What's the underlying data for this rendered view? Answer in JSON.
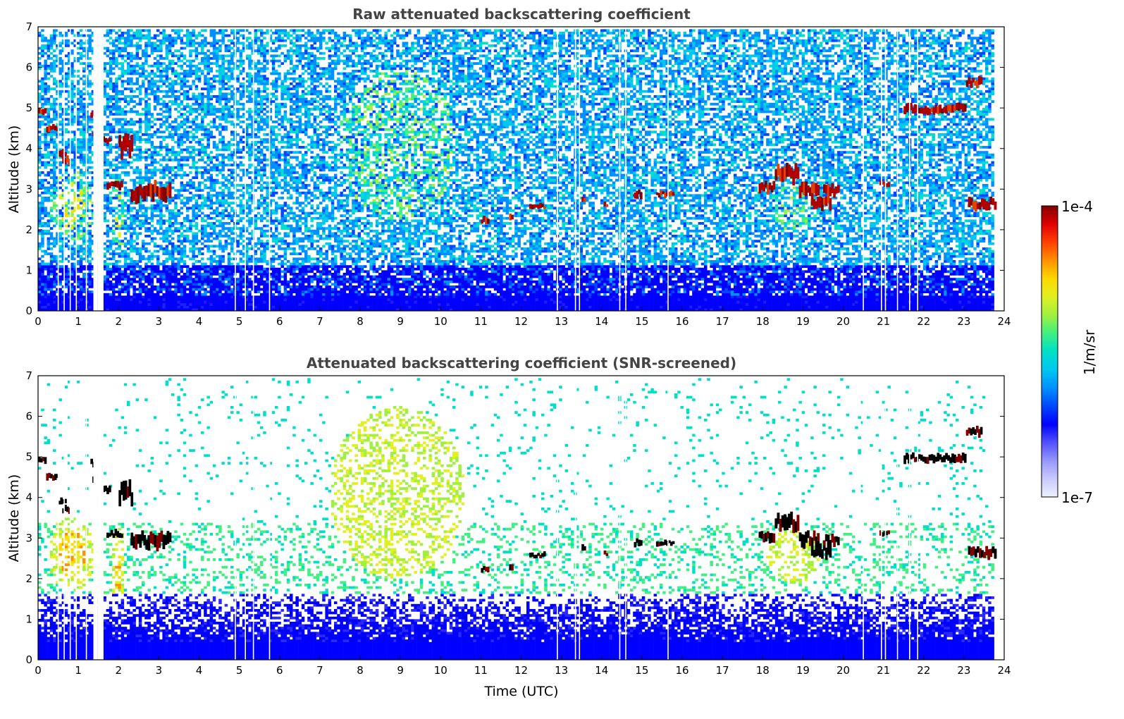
{
  "chart_data": [
    {
      "type": "heatmap",
      "title": "Raw attenuated backscattering coefficient",
      "xlabel": "",
      "ylabel": "Altitude (km)",
      "xlim": [
        0,
        24
      ],
      "ylim": [
        0,
        7
      ],
      "xticks": [
        "0",
        "1",
        "2",
        "3",
        "4",
        "5",
        "6",
        "7",
        "8",
        "9",
        "10",
        "11",
        "12",
        "13",
        "14",
        "15",
        "16",
        "17",
        "18",
        "19",
        "20",
        "21",
        "22",
        "23",
        "24"
      ],
      "yticks": [
        "0",
        "1",
        "2",
        "3",
        "4",
        "5",
        "6",
        "7"
      ],
      "data_end_hour": 23.8,
      "missing_data_hours": [
        0.5,
        0.65,
        0.8,
        0.95,
        1.2,
        1.4,
        1.45,
        1.5,
        1.55,
        1.6,
        4.9,
        5.15,
        5.35,
        5.75,
        12.9,
        13.35,
        13.45,
        14.45,
        14.6,
        15.65,
        20.5,
        20.95,
        21.05,
        21.35,
        21.65,
        21.85
      ],
      "clouds": [
        {
          "t": [
            0.0,
            0.2
          ],
          "alt": [
            4.8,
            5.0
          ],
          "level": "high"
        },
        {
          "t": [
            0.2,
            0.5
          ],
          "alt": [
            4.4,
            4.6
          ],
          "level": "high"
        },
        {
          "t": [
            0.5,
            0.7
          ],
          "alt": [
            3.8,
            4.0
          ],
          "level": "high"
        },
        {
          "t": [
            0.6,
            0.8
          ],
          "alt": [
            3.6,
            3.8
          ],
          "level": "high"
        },
        {
          "t": [
            1.3,
            1.4
          ],
          "alt": [
            4.75,
            4.95
          ],
          "level": "high"
        },
        {
          "t": [
            1.35,
            1.45
          ],
          "alt": [
            4.3,
            4.5
          ],
          "level": "high"
        },
        {
          "t": [
            1.6,
            1.8
          ],
          "alt": [
            4.1,
            4.3
          ],
          "level": "high"
        },
        {
          "t": [
            2.0,
            2.35
          ],
          "alt": [
            3.8,
            4.4
          ],
          "level": "high"
        },
        {
          "t": [
            1.7,
            2.1
          ],
          "alt": [
            3.0,
            3.2
          ],
          "level": "high"
        },
        {
          "t": [
            2.3,
            3.3
          ],
          "alt": [
            2.7,
            3.2
          ],
          "level": "high"
        },
        {
          "t": [
            11.0,
            11.2
          ],
          "alt": [
            2.15,
            2.35
          ],
          "level": "high"
        },
        {
          "t": [
            11.7,
            11.8
          ],
          "alt": [
            2.2,
            2.4
          ],
          "level": "high"
        },
        {
          "t": [
            12.2,
            12.6
          ],
          "alt": [
            2.5,
            2.65
          ],
          "level": "high"
        },
        {
          "t": [
            13.5,
            13.6
          ],
          "alt": [
            2.65,
            2.85
          ],
          "level": "high"
        },
        {
          "t": [
            14.05,
            14.15
          ],
          "alt": [
            2.55,
            2.7
          ],
          "level": "high"
        },
        {
          "t": [
            14.8,
            15.0
          ],
          "alt": [
            2.75,
            3.0
          ],
          "level": "high"
        },
        {
          "t": [
            15.35,
            15.8
          ],
          "alt": [
            2.8,
            2.95
          ],
          "level": "high"
        },
        {
          "t": [
            17.9,
            18.3
          ],
          "alt": [
            2.9,
            3.2
          ],
          "level": "high"
        },
        {
          "t": [
            18.3,
            18.9
          ],
          "alt": [
            3.15,
            3.6
          ],
          "level": "high"
        },
        {
          "t": [
            18.9,
            19.4
          ],
          "alt": [
            2.8,
            3.2
          ],
          "level": "high"
        },
        {
          "t": [
            19.2,
            19.7
          ],
          "alt": [
            2.5,
            2.9
          ],
          "level": "high"
        },
        {
          "t": [
            19.5,
            19.9
          ],
          "alt": [
            2.8,
            3.1
          ],
          "level": "high"
        },
        {
          "t": [
            20.9,
            21.15
          ],
          "alt": [
            3.05,
            3.2
          ],
          "level": "high"
        },
        {
          "t": [
            21.5,
            23.05
          ],
          "alt": [
            4.85,
            5.1
          ],
          "level": "high"
        },
        {
          "t": [
            23.05,
            23.45
          ],
          "alt": [
            5.5,
            5.75
          ],
          "level": "high"
        },
        {
          "t": [
            23.1,
            23.8
          ],
          "alt": [
            2.5,
            2.8
          ],
          "level": "high"
        },
        {
          "t": [
            0.3,
            1.3
          ],
          "alt": [
            1.8,
            3.4
          ],
          "level": "medium"
        },
        {
          "t": [
            1.8,
            2.1
          ],
          "alt": [
            1.5,
            3.2
          ],
          "level": "medium"
        },
        {
          "t": [
            7.0,
            10.8
          ],
          "alt": [
            1.7,
            6.5
          ],
          "level": "low"
        },
        {
          "t": [
            18.0,
            19.5
          ],
          "alt": [
            1.8,
            3.3
          ],
          "level": "low"
        }
      ]
    },
    {
      "type": "heatmap",
      "title": "Attenuated backscattering coefficient (SNR-screened)",
      "xlabel": "Time (UTC)",
      "ylabel": "Altitude (km)",
      "xlim": [
        0,
        24
      ],
      "ylim": [
        0,
        7
      ],
      "xticks": [
        "0",
        "1",
        "2",
        "3",
        "4",
        "5",
        "6",
        "7",
        "8",
        "9",
        "10",
        "11",
        "12",
        "13",
        "14",
        "15",
        "16",
        "17",
        "18",
        "19",
        "20",
        "21",
        "22",
        "23",
        "24"
      ],
      "yticks": [
        "0",
        "1",
        "2",
        "3",
        "4",
        "5",
        "6",
        "7"
      ],
      "saturated_color": "#000000"
    }
  ],
  "colorbar": {
    "label": "1/m/sr",
    "max_label": "1e-4",
    "min_label": "1e-7",
    "colors": [
      "#f0f0ff",
      "#c8c8ff",
      "#9696ff",
      "#5050ff",
      "#0000ff",
      "#0048ff",
      "#0090ff",
      "#00c8f0",
      "#00e0c8",
      "#40f080",
      "#a0f040",
      "#e0f020",
      "#ffd800",
      "#ff9000",
      "#ff4000",
      "#e00000",
      "#800000"
    ]
  },
  "colors": {
    "title": "#444444",
    "background": "#ffffff"
  }
}
